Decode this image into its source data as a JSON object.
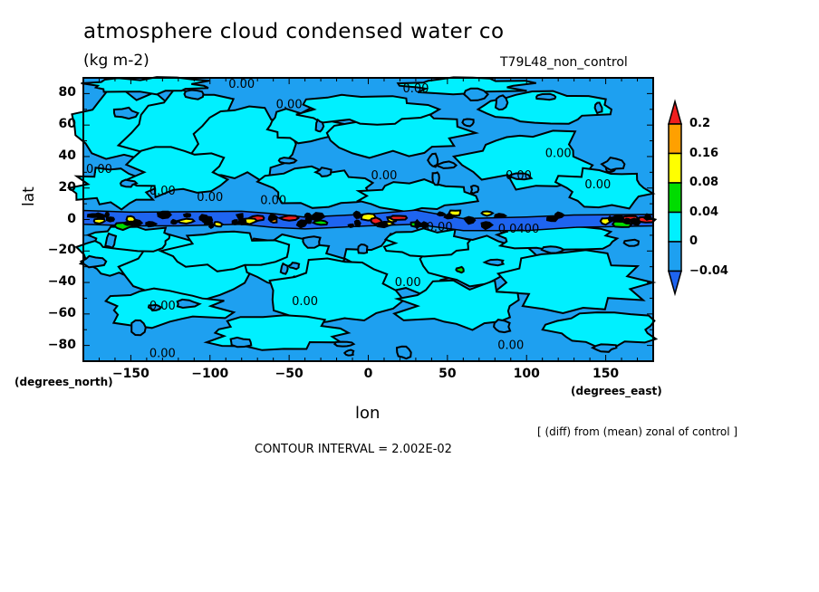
{
  "chart_data": {
    "type": "heatmap",
    "subtype": "filled-contour-map",
    "title": "atmosphere cloud condensed water co",
    "units": "(kg m-2)",
    "run_label": "T79L48_non_control",
    "xlabel": "lon",
    "ylabel": "lat",
    "x_units": "(degrees_east)",
    "y_units": "(degrees_north)",
    "xlim": [
      -180,
      180
    ],
    "ylim": [
      -90,
      90
    ],
    "x_ticks": [
      -150,
      -100,
      -50,
      0,
      50,
      100,
      150
    ],
    "x_tick_labels": [
      "-150",
      "-100",
      "-50",
      "0",
      "50",
      "100",
      "150"
    ],
    "y_ticks": [
      80,
      60,
      40,
      20,
      0,
      -20,
      -40,
      -60,
      -80
    ],
    "y_tick_labels": [
      "80",
      "60",
      "40",
      "20",
      "0",
      "-20",
      "-40",
      "-60",
      "-80"
    ],
    "contour_interval_text": "CONTOUR INTERVAL = 2.002E-02",
    "contour_interval": 0.02002,
    "note": "[ (diff) from (mean) zonal of control ]",
    "colorbar": {
      "placement": "right",
      "levels": [
        -0.04,
        0,
        0.04,
        0.08,
        0.16,
        0.2
      ],
      "labels": [
        "0.2",
        "0.16",
        "0.08",
        "0.04",
        "0",
        "-0.04"
      ],
      "colors": [
        "#1e64f0",
        "#1ea0f0",
        "#00f0ff",
        "#00dc00",
        "#ffff00",
        "#ffa000",
        "#f01e1e"
      ],
      "extend": "both"
    },
    "contour_labels": [
      {
        "text": "0.00",
        "lon": -80,
        "lat": 86
      },
      {
        "text": "0.00",
        "lon": -50,
        "lat": 73
      },
      {
        "text": "0.00",
        "lon": 30,
        "lat": 83
      },
      {
        "text": "0.00",
        "lon": -170,
        "lat": 32
      },
      {
        "text": "0.00",
        "lon": -130,
        "lat": 18
      },
      {
        "text": "0.00",
        "lon": -100,
        "lat": 14
      },
      {
        "text": "0.00",
        "lon": -60,
        "lat": 12
      },
      {
        "text": "0.00",
        "lon": 10,
        "lat": 28
      },
      {
        "text": "0.00",
        "lon": 95,
        "lat": 28
      },
      {
        "text": "0.00",
        "lon": 120,
        "lat": 42
      },
      {
        "text": "0.00",
        "lon": 145,
        "lat": 22
      },
      {
        "text": "0.00",
        "lon": 45,
        "lat": -5
      },
      {
        "text": "0.0400",
        "lon": 95,
        "lat": -6
      },
      {
        "text": "0.00",
        "lon": -130,
        "lat": -55
      },
      {
        "text": "0.00",
        "lon": -40,
        "lat": -52
      },
      {
        "text": "0.00",
        "lon": 25,
        "lat": -40
      },
      {
        "text": "0.00",
        "lon": -130,
        "lat": -85
      },
      {
        "text": "0.00",
        "lon": 90,
        "lat": -80
      }
    ],
    "description": "Filled contour lat-lon map; mostly values near 0 (cyan, 0 to 0.04) and slightly negative (blue, -0.04 to 0) in large patches; strongest anomalies in equatorial band (~5S-5N) with negative (dark blue, < -0.04) over central/eastern Pacific (-40 to 140 E-ish) and positive yellow/orange/red spots (0.08-0.2+) near lon -100..-40, 0..40, 150..175"
  }
}
